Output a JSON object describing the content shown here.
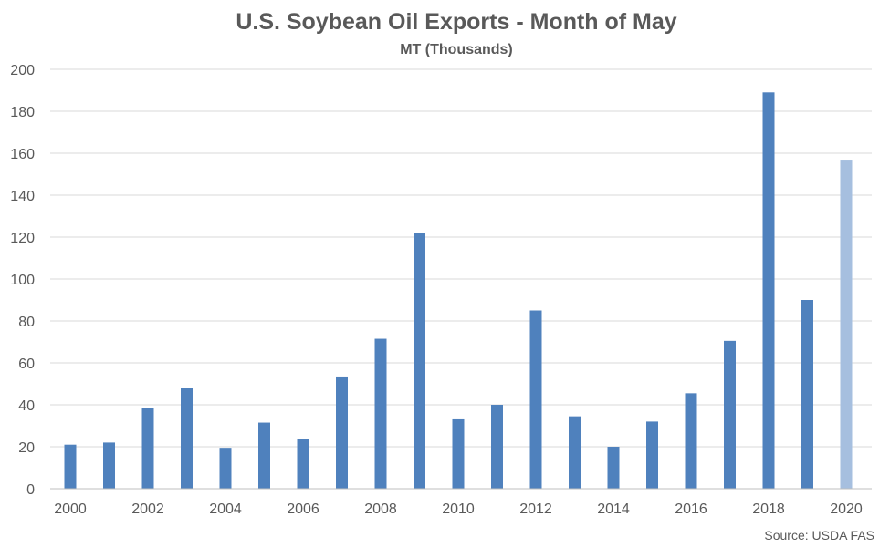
{
  "chart_data": {
    "type": "bar",
    "title": "U.S. Soybean Oil Exports - Month of May",
    "subtitle": "MT (Thousands)",
    "xlabel": "",
    "ylabel": "",
    "categories": [
      "2000",
      "2001",
      "2002",
      "2003",
      "2004",
      "2005",
      "2006",
      "2007",
      "2008",
      "2009",
      "2010",
      "2011",
      "2012",
      "2013",
      "2014",
      "2015",
      "2016",
      "2017",
      "2018",
      "2019",
      "2020"
    ],
    "x_tick_labels": [
      "2000",
      "2002",
      "2004",
      "2006",
      "2008",
      "2010",
      "2012",
      "2014",
      "2016",
      "2018",
      "2020"
    ],
    "values": [
      21,
      22,
      38.5,
      48,
      19.5,
      31.5,
      23.5,
      53.5,
      71.5,
      122,
      33.5,
      40,
      85,
      34.5,
      20,
      32,
      45.5,
      70.5,
      189,
      90,
      156.5
    ],
    "ylim": [
      0,
      200
    ],
    "yticks": [
      0,
      20,
      40,
      60,
      80,
      100,
      120,
      140,
      160,
      180,
      200
    ],
    "grid": true,
    "legend": "none",
    "colors": {
      "bar": "#4f81bd",
      "highlight": "#a6bfdf"
    },
    "highlight_categories": [
      "2020"
    ],
    "source": "Source: USDA FAS"
  }
}
